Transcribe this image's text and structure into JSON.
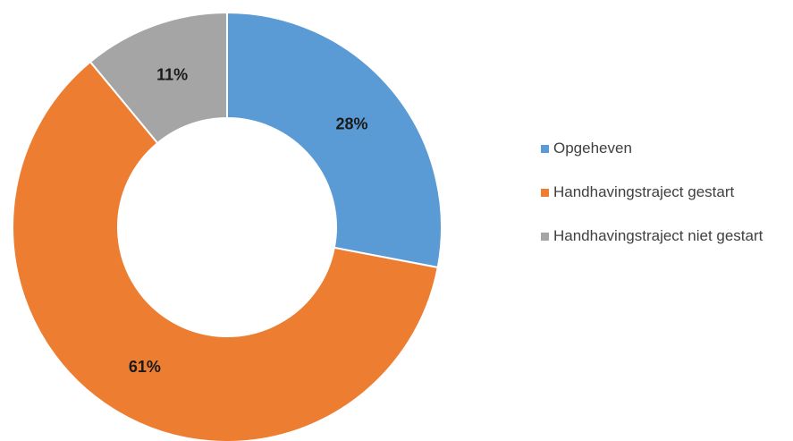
{
  "chart_data": {
    "type": "pie",
    "donut": true,
    "title": "",
    "categories": [
      "Opgeheven",
      "Handhavingstraject gestart",
      "Handhavingstraject niet gestart"
    ],
    "values": [
      28,
      61,
      11
    ],
    "labels": [
      "28%",
      "61%",
      "11%"
    ],
    "colors": [
      "#5b9bd5",
      "#ed7d31",
      "#a5a5a5"
    ],
    "legend_position": "right"
  },
  "legend": {
    "items": [
      {
        "label": "Opgeheven",
        "color": "#5b9bd5"
      },
      {
        "label": "Handhavingstraject gestart",
        "color": "#ed7d31"
      },
      {
        "label": "Handhavingstraject niet gestart",
        "color": "#a5a5a5"
      }
    ]
  }
}
